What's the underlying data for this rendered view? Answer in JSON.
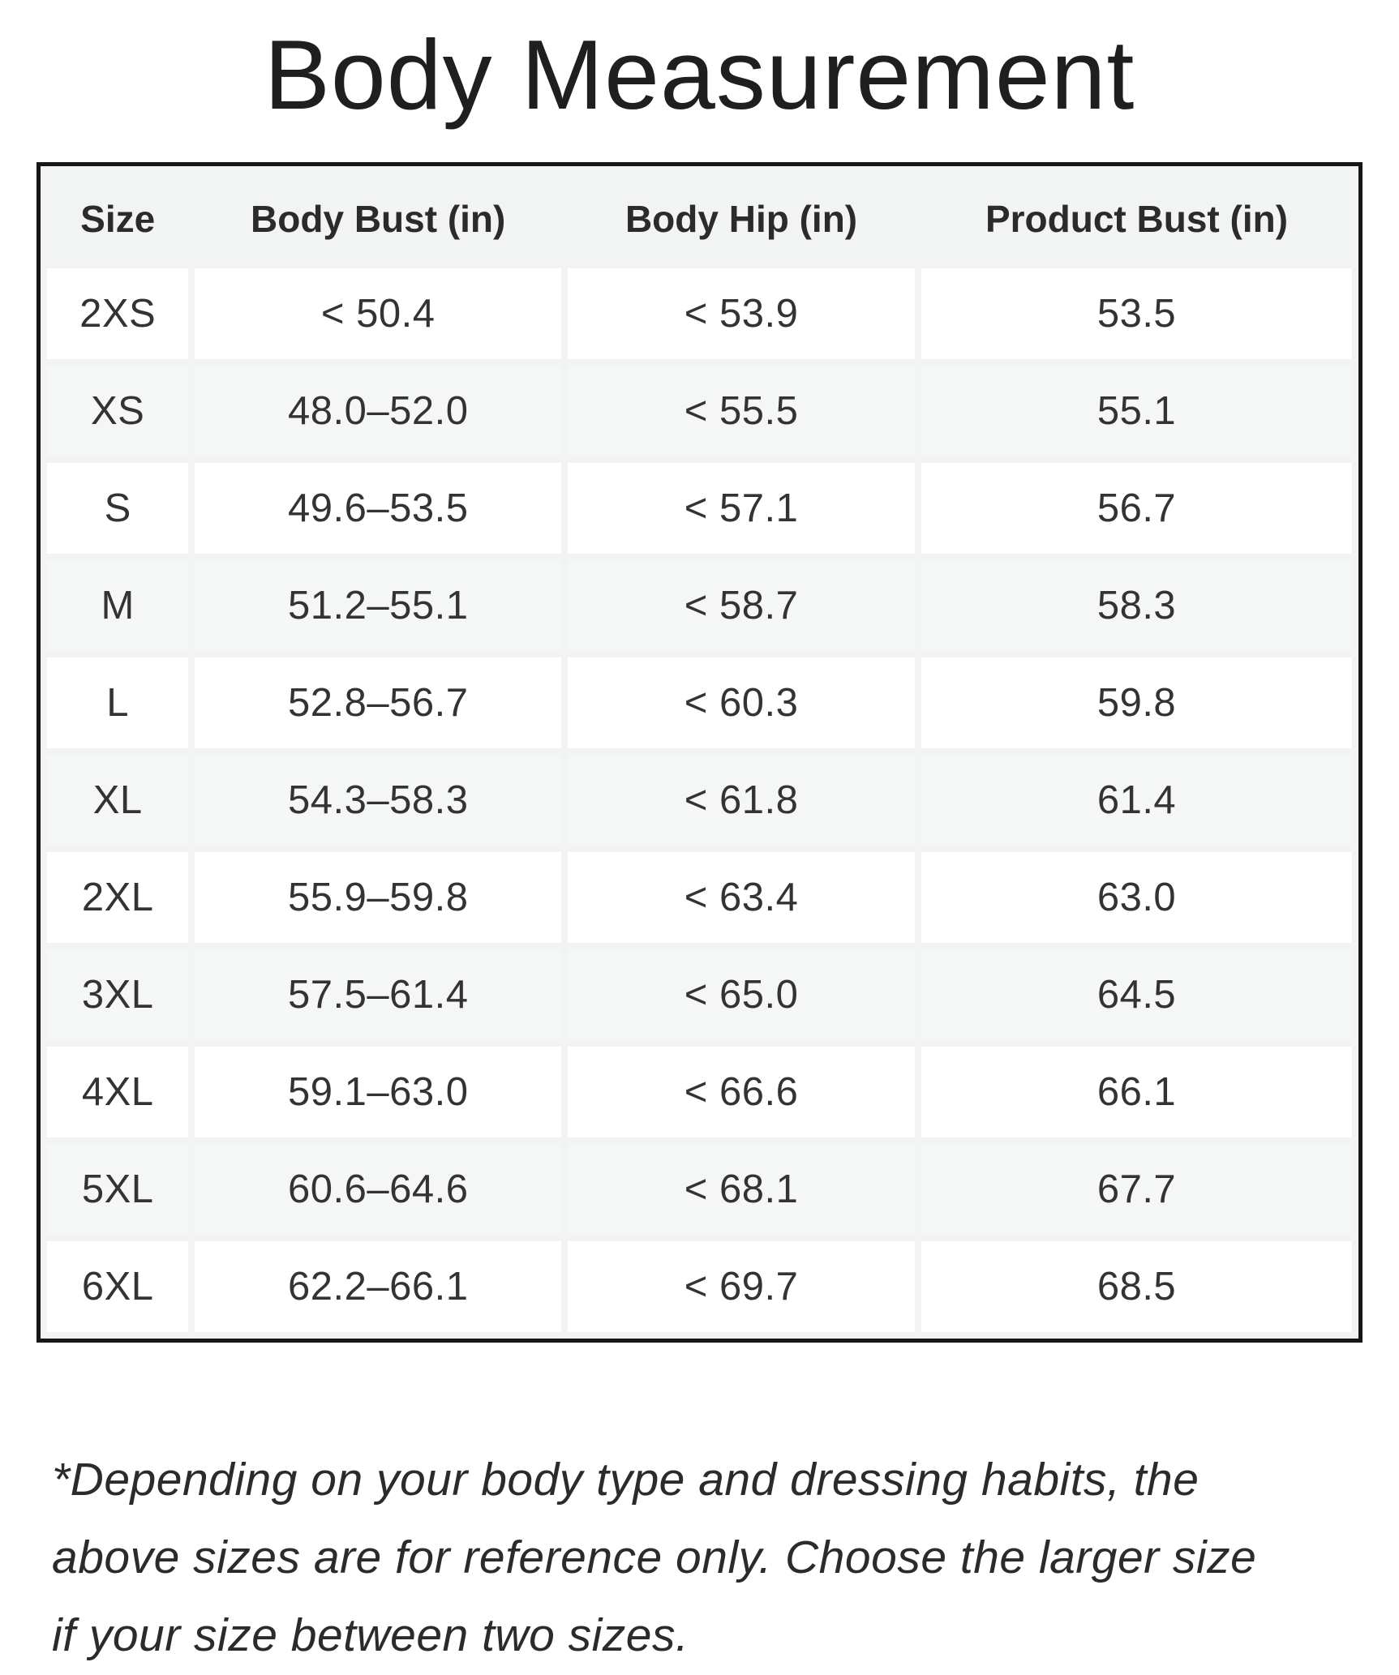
{
  "title": "Body Measurement",
  "table": {
    "columns": [
      "Size",
      "Body Bust (in)",
      "Body Hip (in)",
      "Product Bust (in)"
    ],
    "rows": [
      {
        "size": "2XS",
        "body_bust": "< 50.4",
        "body_hip": "< 53.9",
        "product_bust": "53.5"
      },
      {
        "size": "XS",
        "body_bust": "48.0–52.0",
        "body_hip": "< 55.5",
        "product_bust": "55.1"
      },
      {
        "size": "S",
        "body_bust": "49.6–53.5",
        "body_hip": "< 57.1",
        "product_bust": "56.7"
      },
      {
        "size": "M",
        "body_bust": "51.2–55.1",
        "body_hip": "< 58.7",
        "product_bust": "58.3"
      },
      {
        "size": "L",
        "body_bust": "52.8–56.7",
        "body_hip": "< 60.3",
        "product_bust": "59.8"
      },
      {
        "size": "XL",
        "body_bust": "54.3–58.3",
        "body_hip": "< 61.8",
        "product_bust": "61.4"
      },
      {
        "size": "2XL",
        "body_bust": "55.9–59.8",
        "body_hip": "< 63.4",
        "product_bust": "63.0"
      },
      {
        "size": "3XL",
        "body_bust": "57.5–61.4",
        "body_hip": "< 65.0",
        "product_bust": "64.5"
      },
      {
        "size": "4XL",
        "body_bust": "59.1–63.0",
        "body_hip": "< 66.6",
        "product_bust": "66.1"
      },
      {
        "size": "5XL",
        "body_bust": "60.6–64.6",
        "body_hip": "< 68.1",
        "product_bust": "67.7"
      },
      {
        "size": "6XL",
        "body_bust": "62.2–66.1",
        "body_hip": "< 69.7",
        "product_bust": "68.5"
      }
    ]
  },
  "footnote": "*Depending on your body type and dressing habits, the above sizes are for reference only. Choose the larger size if your size between two sizes.",
  "colors": {
    "border": "#161616",
    "gap_bg": "#f2f3f3",
    "row_bg": "#ffffff",
    "row_alt_bg": "#f5f6f6",
    "text": "#333333",
    "title_text": "#1f1f1f"
  },
  "chart_data": {
    "type": "table",
    "title": "Body Measurement",
    "columns": [
      "Size",
      "Body Bust (in)",
      "Body Hip (in)",
      "Product Bust (in)"
    ],
    "rows": [
      [
        "2XS",
        "< 50.4",
        "< 53.9",
        "53.5"
      ],
      [
        "XS",
        "48.0–52.0",
        "< 55.5",
        "55.1"
      ],
      [
        "S",
        "49.6–53.5",
        "< 57.1",
        "56.7"
      ],
      [
        "M",
        "51.2–55.1",
        "< 58.7",
        "58.3"
      ],
      [
        "L",
        "52.8–56.7",
        "< 60.3",
        "59.8"
      ],
      [
        "XL",
        "54.3–58.3",
        "< 61.8",
        "61.4"
      ],
      [
        "2XL",
        "55.9–59.8",
        "< 63.4",
        "63.0"
      ],
      [
        "3XL",
        "57.5–61.4",
        "< 65.0",
        "64.5"
      ],
      [
        "4XL",
        "59.1–63.0",
        "< 66.6",
        "66.1"
      ],
      [
        "5XL",
        "60.6–64.6",
        "< 68.1",
        "67.7"
      ],
      [
        "6XL",
        "62.2–66.1",
        "< 69.7",
        "68.5"
      ]
    ]
  }
}
